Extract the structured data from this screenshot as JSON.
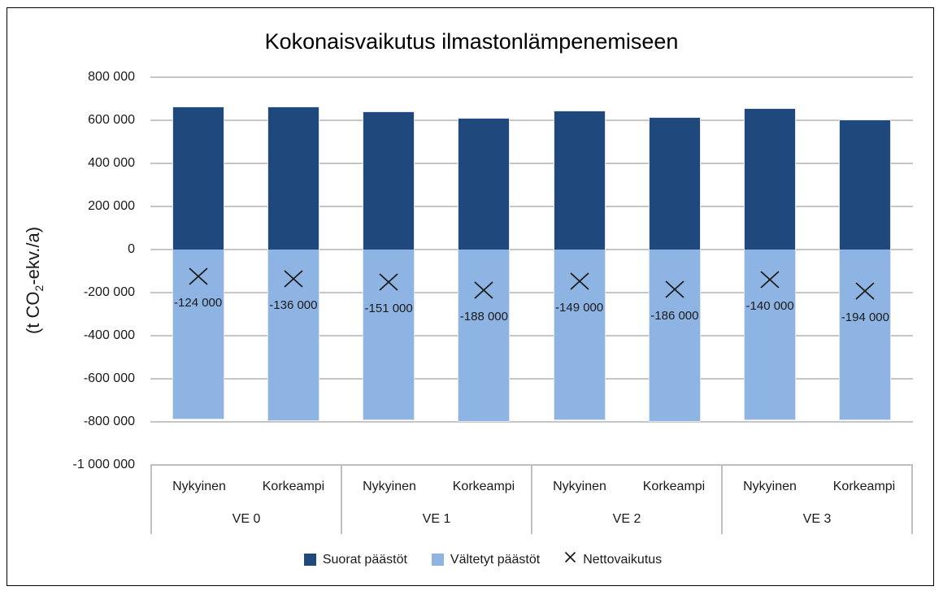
{
  "chart_data": {
    "type": "bar",
    "title": "Kokonaisvaikutus ilmastonlämpenemiseen",
    "ylabel_prefix": "(t CO",
    "ylabel_sub": "2",
    "ylabel_suffix": "-ekv./a)",
    "ylim": [
      -1000000,
      800000
    ],
    "ytick_step": 200000,
    "ytick_labels": [
      "800 000",
      "600 000",
      "400 000",
      "200 000",
      "0",
      "-200 000",
      "-400 000",
      "-600 000",
      "-800 000",
      "-1 000 000"
    ],
    "grid": true,
    "gridline_color": "#C6C6C6",
    "groups": [
      "VE 0",
      "VE 1",
      "VE 2",
      "VE 3"
    ],
    "subcategories": [
      "Nykyinen",
      "Korkeampi"
    ],
    "legend_position": "bottom",
    "series": [
      {
        "name": "Suorat päästöt",
        "type": "bar",
        "color": "#1F497D",
        "values": [
          665000,
          663000,
          642000,
          612000,
          645000,
          616000,
          655000,
          602000
        ]
      },
      {
        "name": "Vältetyt päästöt",
        "type": "bar",
        "color": "#8EB4E3",
        "values": [
          -789000,
          -799000,
          -793000,
          -800000,
          -794000,
          -802000,
          -795000,
          -796000
        ]
      },
      {
        "name": "Nettovaikutus",
        "type": "scatter",
        "marker": "x",
        "color": "#1C1C1C",
        "values": [
          -124000,
          -136000,
          -151000,
          -188000,
          -149000,
          -186000,
          -140000,
          -194000
        ]
      }
    ],
    "net_labels": [
      "-124 000",
      "-136 000",
      "-151 000",
      "-188 000",
      "-149 000",
      "-186 000",
      "-140 000",
      "-194 000"
    ]
  }
}
